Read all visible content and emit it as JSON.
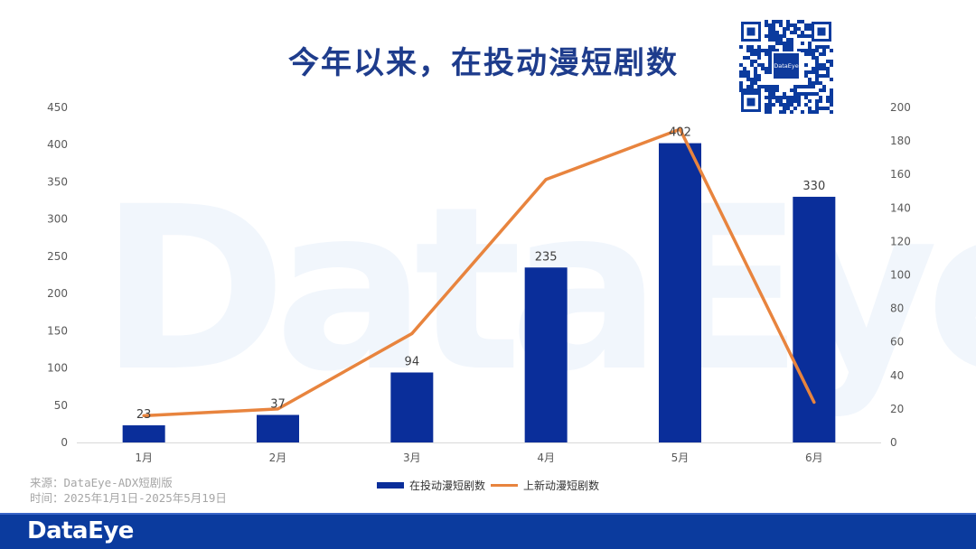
{
  "header": {
    "title": "今年以来，在投动漫短剧数"
  },
  "watermark": {
    "text": "DataEye"
  },
  "qr": {
    "center_label": "DataEye"
  },
  "source": {
    "line1": "来源：DataEye-ADX短剧版",
    "line2": "时间：2025年1月1日-2025年5月19日"
  },
  "footer": {
    "logo": "DataEye"
  },
  "colors": {
    "bar": "#0a2e9a",
    "line": "#e8843e",
    "brand": "#0b3b9e",
    "title": "#1e3c8c"
  },
  "chart_data": {
    "type": "bar",
    "categories": [
      "1月",
      "2月",
      "3月",
      "4月",
      "5月",
      "6月"
    ],
    "series": [
      {
        "name": "在投动漫短剧数",
        "type": "bar",
        "axis": "left",
        "values": [
          23,
          37,
          94,
          235,
          402,
          330
        ],
        "labels": [
          "23",
          "37",
          "94",
          "235",
          "402",
          "330"
        ]
      },
      {
        "name": "上新动漫短剧数",
        "type": "line",
        "axis": "right",
        "values": [
          16,
          20,
          65,
          157,
          187,
          24
        ]
      }
    ],
    "y_left": {
      "range": [
        0,
        450
      ],
      "ticks": [
        "0",
        "50",
        "100",
        "150",
        "200",
        "250",
        "300",
        "350",
        "400",
        "450"
      ]
    },
    "y_right": {
      "range": [
        0,
        200
      ],
      "ticks": [
        "0",
        "20",
        "40",
        "60",
        "80",
        "100",
        "120",
        "140",
        "160",
        "180",
        "200"
      ]
    },
    "grid": false,
    "legend": "bottom-center"
  }
}
